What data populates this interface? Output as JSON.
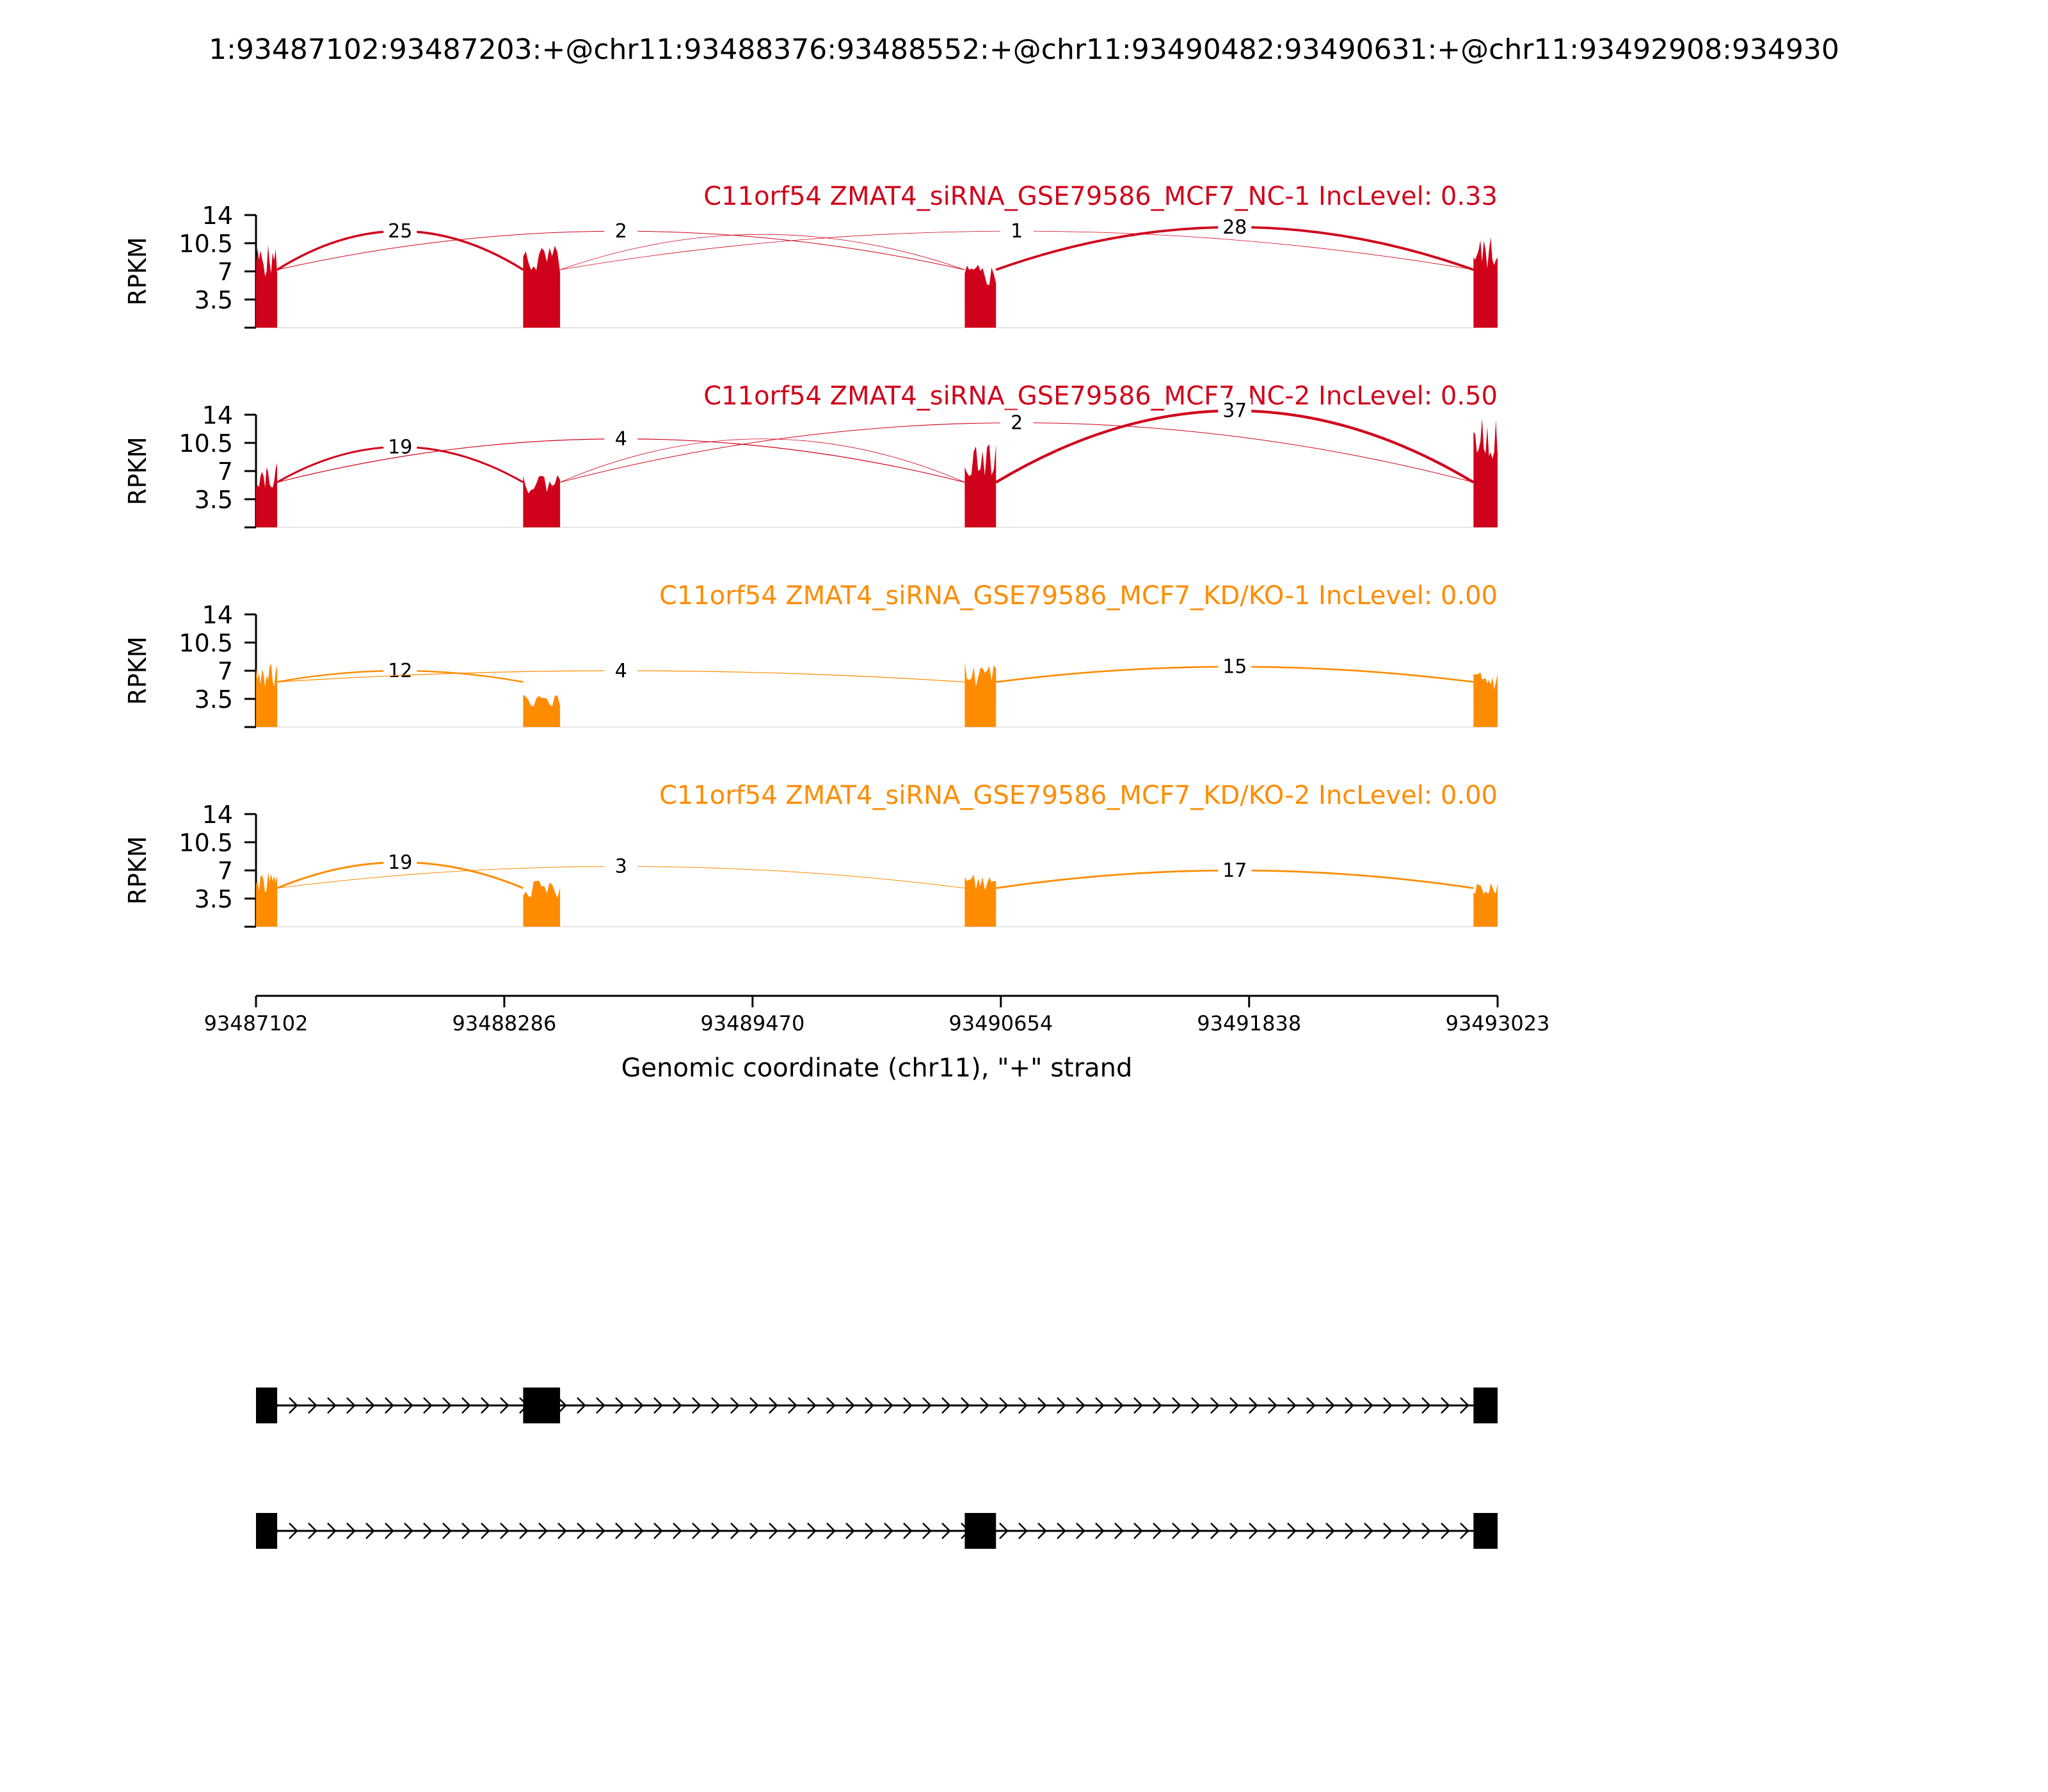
{
  "title": "1:93487102:93487203:+@chr11:93488376:93488552:+@chr11:93490482:93490631:+@chr11:93492908:934930",
  "colors": {
    "nc": "#d0021b",
    "kd": "#ff8c00",
    "axis": "#000000"
  },
  "chart_data": {
    "type": "area",
    "xlabel": "Genomic coordinate (chr11), \"+\" strand",
    "xlim": [
      93487102,
      93493023
    ],
    "xticks": [
      93487102,
      93488286,
      93489470,
      93490654,
      93491838,
      93493023
    ],
    "ylabel": "RPKM",
    "ylim": [
      0,
      14
    ],
    "yticks": [
      "14",
      "10.5",
      "7",
      "3.5"
    ],
    "exons": [
      [
        93487102,
        93487203
      ],
      [
        93488376,
        93488552
      ],
      [
        93490482,
        93490631
      ],
      [
        93492908,
        93493023
      ]
    ],
    "samples": [
      {
        "label": "C11orf54 ZMAT4_siRNA_GSE79586_MCF7_NC-1 IncLevel: 0.33",
        "group": "nc",
        "coverage": [
          9,
          9,
          7,
          10
        ],
        "junctions": [
          {
            "from": 93487203,
            "to": 93488376,
            "count": "25",
            "height": 12.0,
            "width": 3.5
          },
          {
            "from": 93487203,
            "to": 93490482,
            "count": "2",
            "height": 12.0,
            "width": 1.0
          },
          {
            "from": 93488552,
            "to": 93492908,
            "count": "1",
            "height": 12.0,
            "width": 0.8
          },
          {
            "from": 93490631,
            "to": 93492908,
            "count": "28",
            "height": 12.5,
            "width": 3.8
          },
          {
            "from": 93488552,
            "to": 93490482,
            "count": "",
            "height": 11.6,
            "width": 0.8
          }
        ]
      },
      {
        "label": "C11orf54 ZMAT4_siRNA_GSE79586_MCF7_NC-2 IncLevel: 0.50",
        "group": "nc",
        "coverage": [
          7,
          6,
          9,
          12
        ],
        "junctions": [
          {
            "from": 93487203,
            "to": 93488376,
            "count": "19",
            "height": 10.0,
            "width": 3.0
          },
          {
            "from": 93487203,
            "to": 93490482,
            "count": "4",
            "height": 11.0,
            "width": 1.2
          },
          {
            "from": 93488552,
            "to": 93492908,
            "count": "2",
            "height": 13.0,
            "width": 1.0
          },
          {
            "from": 93490631,
            "to": 93492908,
            "count": "37",
            "height": 14.5,
            "width": 4.2
          },
          {
            "from": 93488552,
            "to": 93490482,
            "count": "",
            "height": 11.0,
            "width": 0.8
          }
        ]
      },
      {
        "label": "C11orf54 ZMAT4_siRNA_GSE79586_MCF7_KD/KO-1 IncLevel: 0.00",
        "group": "kd",
        "coverage": [
          7,
          3.5,
          7,
          6
        ],
        "junctions": [
          {
            "from": 93487203,
            "to": 93488376,
            "count": "12",
            "height": 7.0,
            "width": 2.4
          },
          {
            "from": 93487203,
            "to": 93490482,
            "count": "4",
            "height": 7.0,
            "width": 1.2
          },
          {
            "from": 93490631,
            "to": 93492908,
            "count": "15",
            "height": 7.5,
            "width": 2.6
          }
        ]
      },
      {
        "label": "C11orf54 ZMAT4_siRNA_GSE79586_MCF7_KD/KO-2 IncLevel: 0.00",
        "group": "kd",
        "coverage": [
          6,
          5,
          6,
          5.5
        ],
        "junctions": [
          {
            "from": 93487203,
            "to": 93488376,
            "count": "19",
            "height": 8.0,
            "width": 3.0
          },
          {
            "from": 93487203,
            "to": 93490482,
            "count": "3",
            "height": 7.5,
            "width": 1.0
          },
          {
            "from": 93490631,
            "to": 93492908,
            "count": "17",
            "height": 7.0,
            "width": 2.8
          }
        ]
      }
    ],
    "isoforms": [
      {
        "exons": [
          [
            93487102,
            93487203
          ],
          [
            93488376,
            93488552
          ],
          [
            93492908,
            93493023
          ]
        ]
      },
      {
        "exons": [
          [
            93487102,
            93487203
          ],
          [
            93490482,
            93490631
          ],
          [
            93492908,
            93493023
          ]
        ]
      }
    ]
  }
}
